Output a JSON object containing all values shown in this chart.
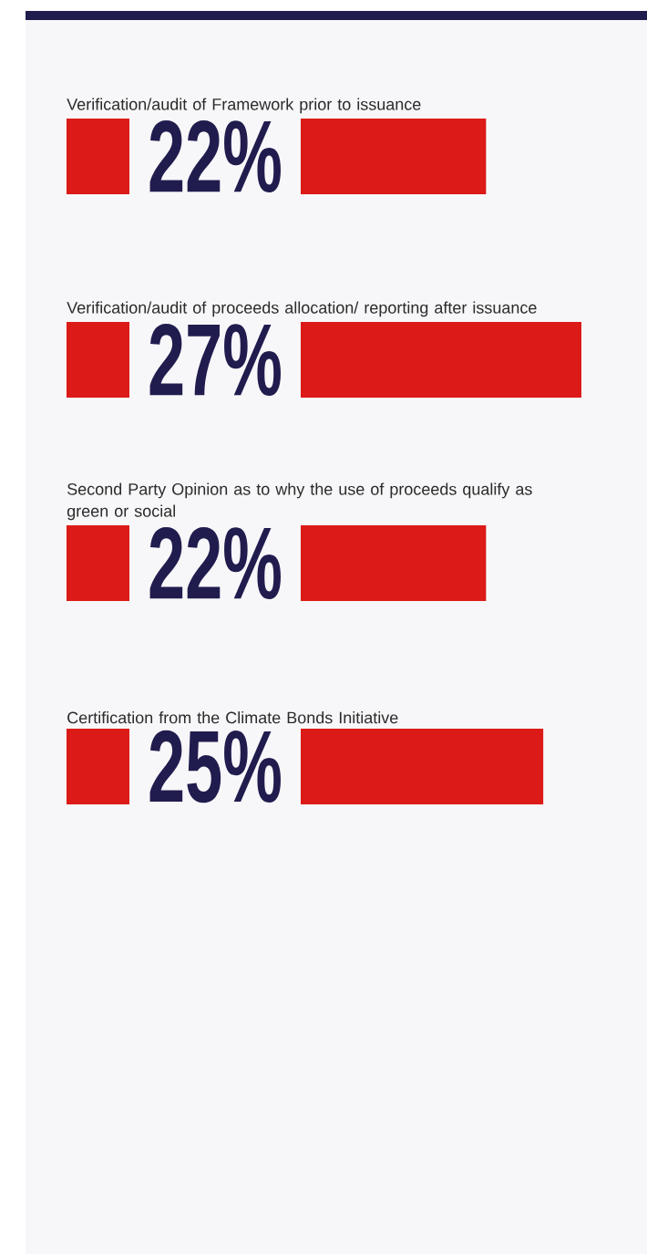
{
  "chart_data": {
    "type": "bar",
    "orientation": "horizontal",
    "color": "#dc1a17",
    "categories": [
      "Verification/audit of Framework prior to issuance",
      "Verification/audit of proceeds allocation/ reporting after issuance",
      "Second Party Opinion as to why the use of proceeds qualify as green or social",
      "Certification from the Climate Bonds Initiative"
    ],
    "values": [
      22,
      27,
      22,
      25
    ],
    "value_labels": [
      "22%",
      "27%",
      "22%",
      "25%"
    ]
  }
}
